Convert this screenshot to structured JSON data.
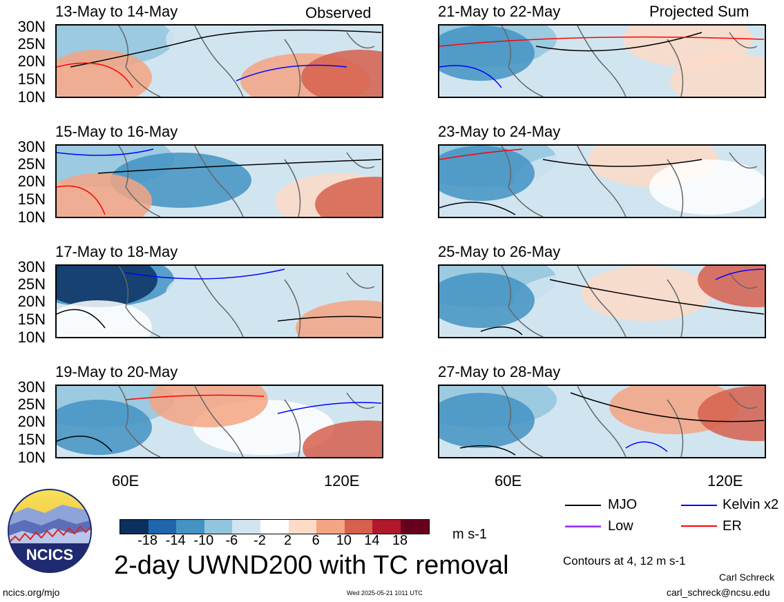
{
  "header": {
    "left_label": "Observed",
    "right_label": "Projected Sum"
  },
  "panels": {
    "left": [
      {
        "date_range": "13-May to 14-May"
      },
      {
        "date_range": "15-May to 16-May"
      },
      {
        "date_range": "17-May to 18-May"
      },
      {
        "date_range": "19-May to 20-May"
      }
    ],
    "right": [
      {
        "date_range": "21-May to 22-May"
      },
      {
        "date_range": "23-May to 24-May"
      },
      {
        "date_range": "25-May to 26-May"
      },
      {
        "date_range": "27-May to 28-May"
      }
    ]
  },
  "axes": {
    "lat_labels": [
      "30N",
      "25N",
      "20N",
      "15N",
      "10N"
    ],
    "lon_labels": [
      "60E",
      "120E"
    ],
    "lat_range": [
      10,
      30
    ],
    "lon_range": [
      40,
      130
    ]
  },
  "colorbar": {
    "tick_labels": [
      "-18",
      "-14",
      "-10",
      "-6",
      "-2",
      "2",
      "6",
      "10",
      "14",
      "18"
    ],
    "colors": [
      "#0b3060",
      "#2066ac",
      "#4393c3",
      "#92c5de",
      "#d1e5f0",
      "#ffffff",
      "#fddbc7",
      "#f4a582",
      "#d6604d",
      "#b2182b",
      "#67001f"
    ],
    "units": "m s-1"
  },
  "legend": {
    "items": [
      {
        "label": "MJO",
        "color": "#000000"
      },
      {
        "label": "Kelvin x2",
        "color": "#0000ff"
      },
      {
        "label": "Low",
        "color": "#9933ff"
      },
      {
        "label": "ER",
        "color": "#ff0000"
      }
    ],
    "contours_note": "Contours at 4, 12 m s-1"
  },
  "title": "2-day UWND200 with TC removal",
  "logo_text": "NCICS",
  "footer": {
    "url": "ncics.org/mjo",
    "timestamp": "Wed 2025-05-21 1011 UTC",
    "author": "Carl Schreck",
    "email": "carl_schreck@ncsu.edu"
  }
}
